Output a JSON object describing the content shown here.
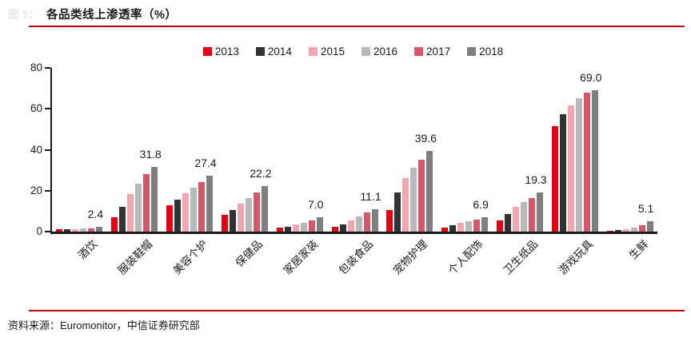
{
  "header": {
    "faded_prefix": "图 2：",
    "title": "各品类线上渗透率（%）"
  },
  "footer": {
    "source": "资料来源：Euromonitor，中信证券研究部"
  },
  "colors": {
    "accent_rule": "#c00000",
    "axis": "#1a1a1a"
  },
  "chart_data": {
    "type": "bar",
    "title": "各品类线上渗透率（%）",
    "xlabel": "",
    "ylabel": "",
    "ylim": [
      0,
      80
    ],
    "yticks": [
      0,
      20,
      40,
      60,
      80
    ],
    "grid": false,
    "legend_position": "top-center",
    "categories": [
      "酒饮",
      "服装鞋帽",
      "美容个护",
      "保健品",
      "家居家装",
      "包装食品",
      "宠物护理",
      "个人配饰",
      "卫生纸品",
      "游戏玩具",
      "生鲜"
    ],
    "series": [
      {
        "name": "2013",
        "color": "#e60012",
        "values": [
          1.0,
          7.1,
          13.0,
          8.2,
          2.1,
          2.2,
          10.5,
          2.0,
          5.5,
          51.5,
          0.5
        ]
      },
      {
        "name": "2014",
        "color": "#333333",
        "values": [
          1.1,
          12.1,
          15.5,
          10.5,
          2.4,
          3.7,
          19.0,
          3.3,
          8.5,
          57.5,
          0.9
        ]
      },
      {
        "name": "2015",
        "color": "#f2a6b0",
        "values": [
          1.2,
          18.4,
          18.9,
          13.5,
          3.4,
          5.5,
          26.0,
          4.4,
          12.0,
          61.5,
          1.3
        ]
      },
      {
        "name": "2016",
        "color": "#b9b9b9",
        "values": [
          1.4,
          23.5,
          21.5,
          16.4,
          4.3,
          7.5,
          31.3,
          5.0,
          14.4,
          65.3,
          2.0
        ]
      },
      {
        "name": "2017",
        "color": "#d6566a",
        "values": [
          1.7,
          28.2,
          24.3,
          19.2,
          5.4,
          9.2,
          35.3,
          5.8,
          16.5,
          68.0,
          3.1
        ]
      },
      {
        "name": "2018",
        "color": "#7f7f7f",
        "values": [
          2.4,
          31.8,
          27.4,
          22.2,
          7.0,
          11.1,
          39.6,
          6.9,
          19.3,
          69.0,
          5.1
        ]
      }
    ],
    "data_labels": {
      "series": "2018",
      "values": [
        2.4,
        31.8,
        27.4,
        22.2,
        7.0,
        11.1,
        39.6,
        6.9,
        19.3,
        69.0,
        5.1
      ]
    }
  }
}
